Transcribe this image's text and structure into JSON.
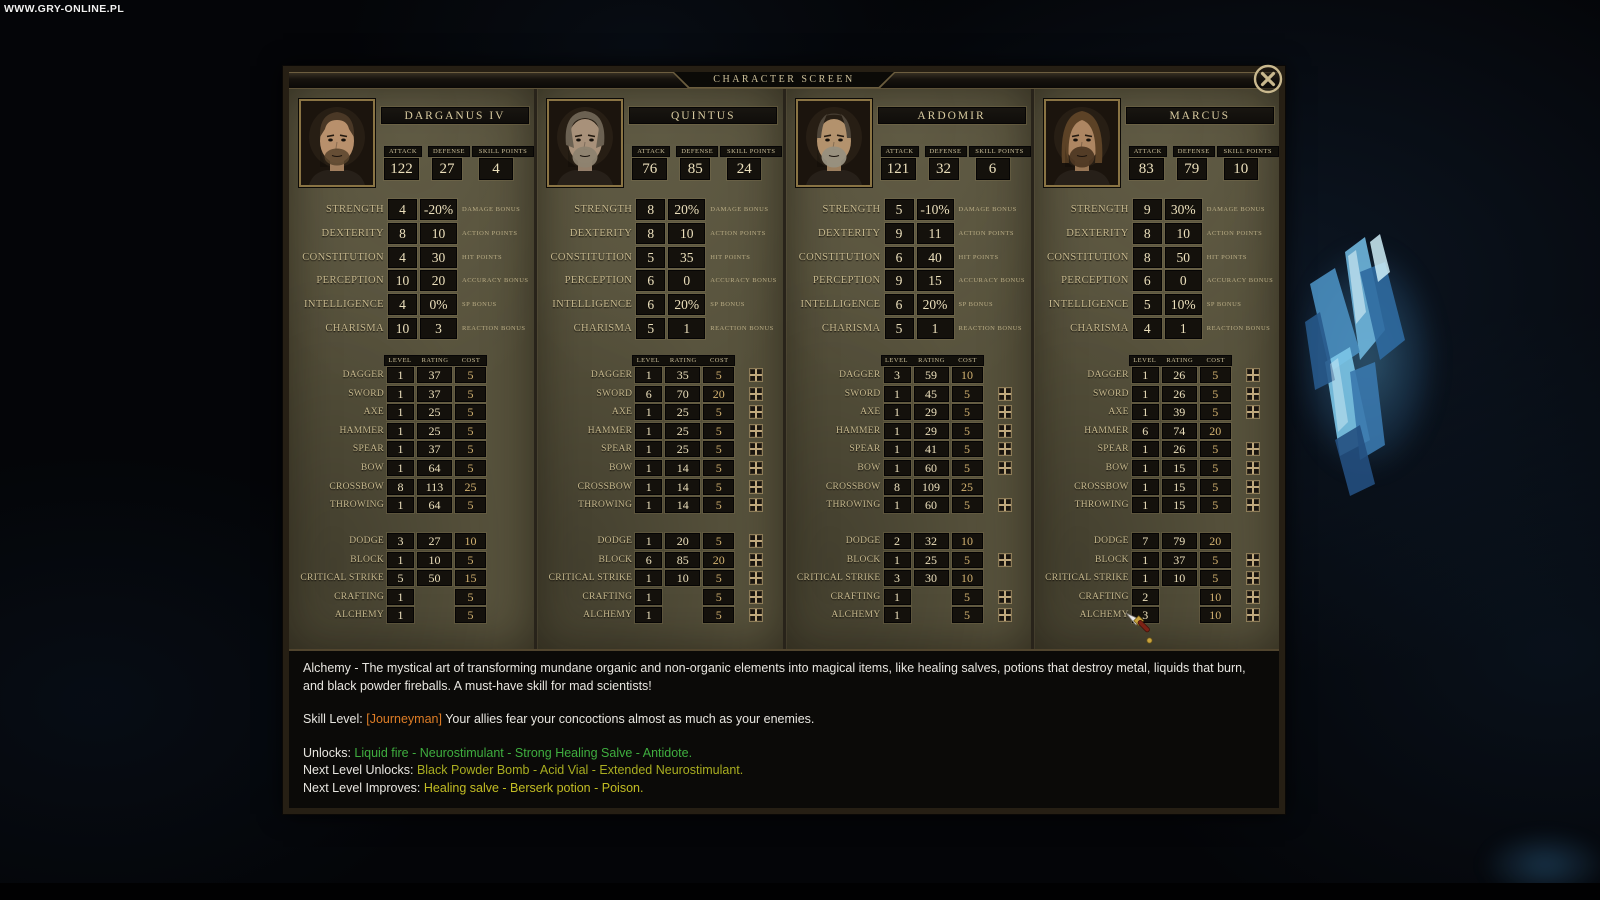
{
  "watermark": "WWW.GRY-ONLINE.PL",
  "dialog": {
    "title": "CHARACTER SCREEN",
    "close_icon": "circle-x"
  },
  "table": {
    "stat_headers": [
      "ATTACK",
      "DEFENSE",
      "SKILL POINTS"
    ],
    "headers": [
      "LEVEL",
      "RATING",
      "COST"
    ]
  },
  "colors": {
    "parchment": "#57523c",
    "box_dark": "#14110c",
    "cost_gold": "#d3b271",
    "text_tan": "#c6b88d",
    "text_green": "#3fae3f",
    "text_olive": "#a9ad20",
    "text_yellow": "#c3bd24",
    "text_orange": "#de7d26",
    "crystal_blue": "#5ab4e0"
  },
  "characters": [
    {
      "name": "DARGANUS IV",
      "attack": "122",
      "defense": "27",
      "skill_points": "4",
      "portrait": {
        "skin": "#b8906c",
        "hair": "#4a3826",
        "beard": "#57432c",
        "style": "short"
      },
      "attributes": [
        {
          "label": "STRENGTH",
          "value": "4",
          "bonus": "-20%",
          "desc": "DAMAGE BONUS"
        },
        {
          "label": "DEXTERITY",
          "value": "8",
          "bonus": "10",
          "desc": "ACTION POINTS"
        },
        {
          "label": "CONSTITUTION",
          "value": "4",
          "bonus": "30",
          "desc": "HIT POINTS"
        },
        {
          "label": "PERCEPTION",
          "value": "10",
          "bonus": "20",
          "desc": "ACCURACY BONUS"
        },
        {
          "label": "INTELLIGENCE",
          "value": "4",
          "bonus": "0%",
          "desc": "SP BONUS"
        },
        {
          "label": "CHARISMA",
          "value": "10",
          "bonus": "3",
          "desc": "REACTION BONUS"
        }
      ],
      "weapon_skills": [
        {
          "label": "DAGGER",
          "level": "1",
          "rating": "37",
          "cost": "5",
          "plus": false
        },
        {
          "label": "SWORD",
          "level": "1",
          "rating": "37",
          "cost": "5",
          "plus": false
        },
        {
          "label": "AXE",
          "level": "1",
          "rating": "25",
          "cost": "5",
          "plus": false
        },
        {
          "label": "HAMMER",
          "level": "1",
          "rating": "25",
          "cost": "5",
          "plus": false
        },
        {
          "label": "SPEAR",
          "level": "1",
          "rating": "37",
          "cost": "5",
          "plus": false
        },
        {
          "label": "BOW",
          "level": "1",
          "rating": "64",
          "cost": "5",
          "plus": false
        },
        {
          "label": "CROSSBOW",
          "level": "8",
          "rating": "113",
          "cost": "25",
          "plus": false
        },
        {
          "label": "THROWING",
          "level": "1",
          "rating": "64",
          "cost": "5",
          "plus": false
        }
      ],
      "other_skills": [
        {
          "label": "DODGE",
          "level": "3",
          "rating": "27",
          "cost": "10",
          "plus": false
        },
        {
          "label": "BLOCK",
          "level": "1",
          "rating": "10",
          "cost": "5",
          "plus": false
        },
        {
          "label": "CRITICAL STRIKE",
          "level": "5",
          "rating": "50",
          "cost": "15",
          "plus": false
        },
        {
          "label": "CRAFTING",
          "level": "1",
          "rating": "",
          "cost": "5",
          "plus": false
        },
        {
          "label": "ALCHEMY",
          "level": "1",
          "rating": "",
          "cost": "5",
          "plus": false
        }
      ]
    },
    {
      "name": "QUINTUS",
      "attack": "76",
      "defense": "85",
      "skill_points": "24",
      "portrait": {
        "skin": "#a8917a",
        "hair": "#6b6152",
        "beard": "#8d8370",
        "style": "messy"
      },
      "attributes": [
        {
          "label": "STRENGTH",
          "value": "8",
          "bonus": "20%",
          "desc": "DAMAGE BONUS"
        },
        {
          "label": "DEXTERITY",
          "value": "8",
          "bonus": "10",
          "desc": "ACTION POINTS"
        },
        {
          "label": "CONSTITUTION",
          "value": "5",
          "bonus": "35",
          "desc": "HIT POINTS"
        },
        {
          "label": "PERCEPTION",
          "value": "6",
          "bonus": "0",
          "desc": "ACCURACY BONUS"
        },
        {
          "label": "INTELLIGENCE",
          "value": "6",
          "bonus": "20%",
          "desc": "SP BONUS"
        },
        {
          "label": "CHARISMA",
          "value": "5",
          "bonus": "1",
          "desc": "REACTION BONUS"
        }
      ],
      "weapon_skills": [
        {
          "label": "DAGGER",
          "level": "1",
          "rating": "35",
          "cost": "5",
          "plus": true
        },
        {
          "label": "SWORD",
          "level": "6",
          "rating": "70",
          "cost": "20",
          "plus": true
        },
        {
          "label": "AXE",
          "level": "1",
          "rating": "25",
          "cost": "5",
          "plus": true
        },
        {
          "label": "HAMMER",
          "level": "1",
          "rating": "25",
          "cost": "5",
          "plus": true
        },
        {
          "label": "SPEAR",
          "level": "1",
          "rating": "25",
          "cost": "5",
          "plus": true
        },
        {
          "label": "BOW",
          "level": "1",
          "rating": "14",
          "cost": "5",
          "plus": true
        },
        {
          "label": "CROSSBOW",
          "level": "1",
          "rating": "14",
          "cost": "5",
          "plus": true
        },
        {
          "label": "THROWING",
          "level": "1",
          "rating": "14",
          "cost": "5",
          "plus": true
        }
      ],
      "other_skills": [
        {
          "label": "DODGE",
          "level": "1",
          "rating": "20",
          "cost": "5",
          "plus": true
        },
        {
          "label": "BLOCK",
          "level": "6",
          "rating": "85",
          "cost": "20",
          "plus": true
        },
        {
          "label": "CRITICAL STRIKE",
          "level": "1",
          "rating": "10",
          "cost": "5",
          "plus": true
        },
        {
          "label": "CRAFTING",
          "level": "1",
          "rating": "",
          "cost": "5",
          "plus": true
        },
        {
          "label": "ALCHEMY",
          "level": "1",
          "rating": "",
          "cost": "5",
          "plus": true
        }
      ]
    },
    {
      "name": "ARDOMIR",
      "attack": "121",
      "defense": "32",
      "skill_points": "6",
      "portrait": {
        "skin": "#b3926d",
        "hair": "#4f463a",
        "beard": "#97907f",
        "style": "receding"
      },
      "attributes": [
        {
          "label": "STRENGTH",
          "value": "5",
          "bonus": "-10%",
          "desc": "DAMAGE BONUS"
        },
        {
          "label": "DEXTERITY",
          "value": "9",
          "bonus": "11",
          "desc": "ACTION POINTS"
        },
        {
          "label": "CONSTITUTION",
          "value": "6",
          "bonus": "40",
          "desc": "HIT POINTS"
        },
        {
          "label": "PERCEPTION",
          "value": "9",
          "bonus": "15",
          "desc": "ACCURACY BONUS"
        },
        {
          "label": "INTELLIGENCE",
          "value": "6",
          "bonus": "20%",
          "desc": "SP BONUS"
        },
        {
          "label": "CHARISMA",
          "value": "5",
          "bonus": "1",
          "desc": "REACTION BONUS"
        }
      ],
      "weapon_skills": [
        {
          "label": "DAGGER",
          "level": "3",
          "rating": "59",
          "cost": "10",
          "plus": false
        },
        {
          "label": "SWORD",
          "level": "1",
          "rating": "45",
          "cost": "5",
          "plus": true
        },
        {
          "label": "AXE",
          "level": "1",
          "rating": "29",
          "cost": "5",
          "plus": true
        },
        {
          "label": "HAMMER",
          "level": "1",
          "rating": "29",
          "cost": "5",
          "plus": true
        },
        {
          "label": "SPEAR",
          "level": "1",
          "rating": "41",
          "cost": "5",
          "plus": true
        },
        {
          "label": "BOW",
          "level": "1",
          "rating": "60",
          "cost": "5",
          "plus": true
        },
        {
          "label": "CROSSBOW",
          "level": "8",
          "rating": "109",
          "cost": "25",
          "plus": false
        },
        {
          "label": "THROWING",
          "level": "1",
          "rating": "60",
          "cost": "5",
          "plus": true
        }
      ],
      "other_skills": [
        {
          "label": "DODGE",
          "level": "2",
          "rating": "32",
          "cost": "10",
          "plus": false
        },
        {
          "label": "BLOCK",
          "level": "1",
          "rating": "25",
          "cost": "5",
          "plus": true
        },
        {
          "label": "CRITICAL STRIKE",
          "level": "3",
          "rating": "30",
          "cost": "10",
          "plus": false
        },
        {
          "label": "CRAFTING",
          "level": "1",
          "rating": "",
          "cost": "5",
          "plus": true
        },
        {
          "label": "ALCHEMY",
          "level": "1",
          "rating": "",
          "cost": "5",
          "plus": true
        }
      ]
    },
    {
      "name": "MARCUS",
      "attack": "83",
      "defense": "79",
      "skill_points": "10",
      "portrait": {
        "skin": "#ad8662",
        "hair": "#5c4226",
        "beard": "#4e3823",
        "style": "long"
      },
      "attributes": [
        {
          "label": "STRENGTH",
          "value": "9",
          "bonus": "30%",
          "desc": "DAMAGE BONUS"
        },
        {
          "label": "DEXTERITY",
          "value": "8",
          "bonus": "10",
          "desc": "ACTION POINTS"
        },
        {
          "label": "CONSTITUTION",
          "value": "8",
          "bonus": "50",
          "desc": "HIT POINTS"
        },
        {
          "label": "PERCEPTION",
          "value": "6",
          "bonus": "0",
          "desc": "ACCURACY BONUS"
        },
        {
          "label": "INTELLIGENCE",
          "value": "5",
          "bonus": "10%",
          "desc": "SP BONUS"
        },
        {
          "label": "CHARISMA",
          "value": "4",
          "bonus": "1",
          "desc": "REACTION BONUS"
        }
      ],
      "weapon_skills": [
        {
          "label": "DAGGER",
          "level": "1",
          "rating": "26",
          "cost": "5",
          "plus": true
        },
        {
          "label": "SWORD",
          "level": "1",
          "rating": "26",
          "cost": "5",
          "plus": true
        },
        {
          "label": "AXE",
          "level": "1",
          "rating": "39",
          "cost": "5",
          "plus": true
        },
        {
          "label": "HAMMER",
          "level": "6",
          "rating": "74",
          "cost": "20",
          "plus": false
        },
        {
          "label": "SPEAR",
          "level": "1",
          "rating": "26",
          "cost": "5",
          "plus": true
        },
        {
          "label": "BOW",
          "level": "1",
          "rating": "15",
          "cost": "5",
          "plus": true
        },
        {
          "label": "CROSSBOW",
          "level": "1",
          "rating": "15",
          "cost": "5",
          "plus": true
        },
        {
          "label": "THROWING",
          "level": "1",
          "rating": "15",
          "cost": "5",
          "plus": true
        }
      ],
      "other_skills": [
        {
          "label": "DODGE",
          "level": "7",
          "rating": "79",
          "cost": "20",
          "plus": false
        },
        {
          "label": "BLOCK",
          "level": "1",
          "rating": "37",
          "cost": "5",
          "plus": true
        },
        {
          "label": "CRITICAL STRIKE",
          "level": "1",
          "rating": "10",
          "cost": "5",
          "plus": true
        },
        {
          "label": "CRAFTING",
          "level": "2",
          "rating": "",
          "cost": "10",
          "plus": true
        },
        {
          "label": "ALCHEMY",
          "level": "3",
          "rating": "",
          "cost": "10",
          "plus": true
        }
      ]
    }
  ],
  "description": {
    "lines": [
      {
        "segments": [
          {
            "text": "Alchemy - The mystical art of transforming mundane organic and non-organic elements into magical items, like healing salves, potions that destroy metal, liquids that burn, and black powder fireballs. A must-have skill for mad scientists!",
            "cls": "plain"
          }
        ]
      },
      {
        "segments": [
          {
            "text": "Skill Level: ",
            "cls": "plain"
          },
          {
            "text": "[Journeyman]",
            "cls": "orange"
          },
          {
            "text": " Your allies fear your concoctions almost as much as your enemies.",
            "cls": "plain"
          }
        ]
      },
      {
        "segments": [
          {
            "text": "Unlocks: ",
            "cls": "plain"
          },
          {
            "text": "Liquid fire - Neurostimulant - Strong Healing Salve - Antidote.",
            "cls": "green"
          }
        ]
      },
      {
        "segments": [
          {
            "text": "Next Level Unlocks: ",
            "cls": "plain"
          },
          {
            "text": "Black Powder Bomb - Acid Vial - Extended Neurostimulant.",
            "cls": "olive"
          }
        ]
      },
      {
        "segments": [
          {
            "text": "Next Level Improves: ",
            "cls": "plain"
          },
          {
            "text": "Healing salve - Berserk potion - Poison.",
            "cls": "yellow"
          }
        ]
      }
    ]
  }
}
